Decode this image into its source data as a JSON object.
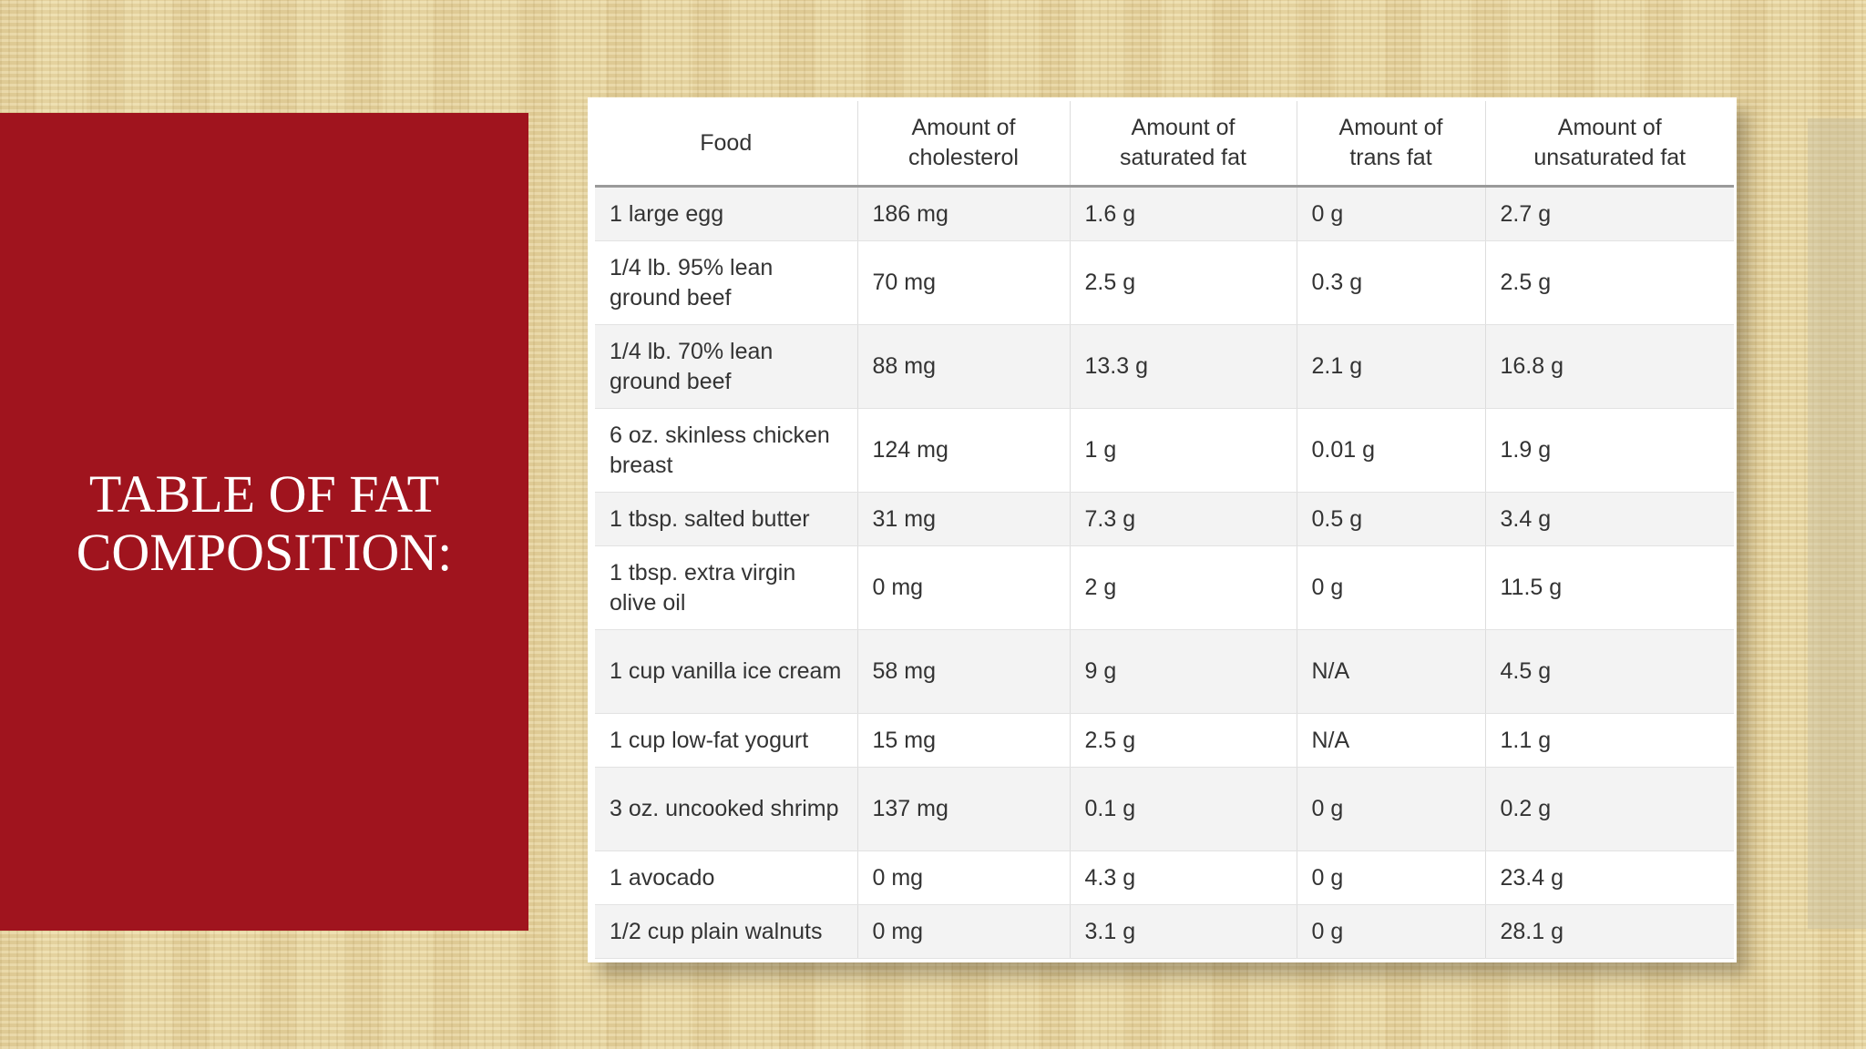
{
  "slide": {
    "title": "TABLE OF FAT\nCOMPOSITION:"
  },
  "colors": {
    "title_panel": "#a0141e",
    "background": "#e9d7a2",
    "table_header_rule": "#9a9a9a",
    "row_stripe": "#f3f3f3"
  },
  "table": {
    "headers": [
      "Food",
      "Amount of\ncholesterol",
      "Amount of\nsaturated fat",
      "Amount of\ntrans fat",
      "Amount of\nunsaturated fat"
    ],
    "rows": [
      [
        "1 large egg",
        "186 mg",
        "1.6 g",
        "0 g",
        "2.7 g"
      ],
      [
        "1/4 lb. 95% lean ground beef",
        "70 mg",
        "2.5 g",
        "0.3 g",
        "2.5 g"
      ],
      [
        "1/4 lb. 70% lean ground beef",
        "88 mg",
        "13.3 g",
        "2.1 g",
        "16.8 g"
      ],
      [
        "6 oz. skinless chicken breast",
        "124 mg",
        "1 g",
        "0.01 g",
        "1.9 g"
      ],
      [
        "1 tbsp. salted butter",
        "31 mg",
        "7.3 g",
        "0.5 g",
        "3.4 g"
      ],
      [
        "1 tbsp. extra virgin olive oil",
        "0 mg",
        "2 g",
        "0 g",
        "11.5 g"
      ],
      [
        "1 cup vanilla ice cream",
        "58 mg",
        "9 g",
        "N/A",
        "4.5 g"
      ],
      [
        "1 cup low-fat yogurt",
        "15 mg",
        "2.5 g",
        "N/A",
        "1.1 g"
      ],
      [
        "3 oz. uncooked shrimp",
        "137 mg",
        "0.1 g",
        "0 g",
        "0.2 g"
      ],
      [
        "1 avocado",
        "0 mg",
        "4.3 g",
        "0 g",
        "23.4 g"
      ],
      [
        "1/2 cup plain walnuts",
        "0 mg",
        "3.1 g",
        "0 g",
        "28.1 g"
      ]
    ]
  }
}
